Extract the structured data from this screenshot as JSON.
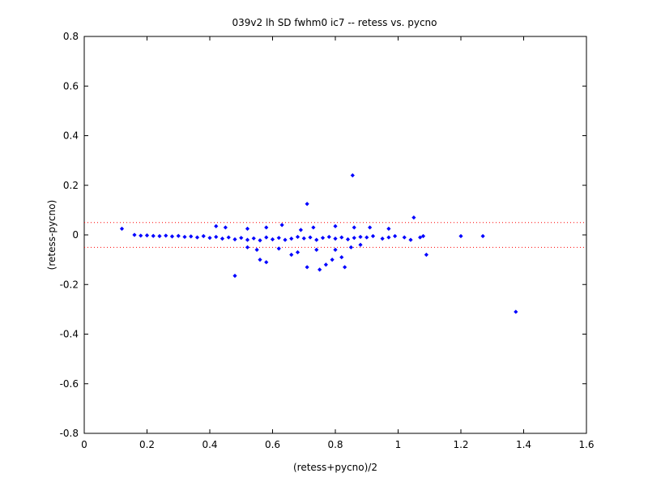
{
  "chart_data": {
    "type": "scatter",
    "title": "039v2 lh SD fwhm0 ic7 -- retess vs. pycno",
    "xlabel": "(retess+pycno)/2",
    "ylabel": "(retess-pycno)",
    "xlim": [
      0,
      1.6
    ],
    "ylim": [
      -0.8,
      0.8
    ],
    "xticks": [
      0,
      0.2,
      0.4,
      0.6,
      0.8,
      1,
      1.2,
      1.4,
      1.6
    ],
    "xtick_labels": [
      "0",
      "0.2",
      "0.4",
      "0.6",
      "0.8",
      "1",
      "1.2",
      "1.4",
      "1.6"
    ],
    "yticks": [
      -0.8,
      -0.6,
      -0.4,
      -0.2,
      0,
      0.2,
      0.4,
      0.6,
      0.8
    ],
    "ytick_labels": [
      "-0.8",
      "-0.6",
      "-0.4",
      "-0.2",
      "0",
      "0.2",
      "0.4",
      "0.6",
      "0.8"
    ],
    "grid": false,
    "reference_lines": [
      0.05,
      -0.05
    ],
    "colors": {
      "points": "#0000ff",
      "reference": "#ff0000",
      "axes": "#000000"
    },
    "points": [
      [
        0.12,
        0.025
      ],
      [
        0.16,
        0.0
      ],
      [
        0.18,
        -0.003
      ],
      [
        0.2,
        -0.002
      ],
      [
        0.22,
        -0.004
      ],
      [
        0.24,
        -0.005
      ],
      [
        0.26,
        -0.003
      ],
      [
        0.28,
        -0.006
      ],
      [
        0.3,
        -0.004
      ],
      [
        0.32,
        -0.008
      ],
      [
        0.34,
        -0.006
      ],
      [
        0.36,
        -0.01
      ],
      [
        0.38,
        -0.005
      ],
      [
        0.4,
        -0.012
      ],
      [
        0.42,
        -0.008
      ],
      [
        0.44,
        -0.015
      ],
      [
        0.46,
        -0.01
      ],
      [
        0.48,
        -0.018
      ],
      [
        0.5,
        -0.012
      ],
      [
        0.52,
        -0.02
      ],
      [
        0.54,
        -0.014
      ],
      [
        0.56,
        -0.022
      ],
      [
        0.58,
        -0.01
      ],
      [
        0.6,
        -0.018
      ],
      [
        0.62,
        -0.012
      ],
      [
        0.64,
        -0.02
      ],
      [
        0.66,
        -0.015
      ],
      [
        0.68,
        -0.008
      ],
      [
        0.7,
        -0.014
      ],
      [
        0.72,
        -0.01
      ],
      [
        0.74,
        -0.02
      ],
      [
        0.76,
        -0.012
      ],
      [
        0.78,
        -0.008
      ],
      [
        0.8,
        -0.015
      ],
      [
        0.82,
        -0.01
      ],
      [
        0.84,
        -0.018
      ],
      [
        0.86,
        -0.012
      ],
      [
        0.88,
        -0.008
      ],
      [
        0.9,
        -0.01
      ],
      [
        0.92,
        -0.005
      ],
      [
        0.42,
        0.035
      ],
      [
        0.45,
        0.03
      ],
      [
        0.52,
        0.025
      ],
      [
        0.58,
        0.03
      ],
      [
        0.63,
        0.04
      ],
      [
        0.69,
        0.02
      ],
      [
        0.73,
        0.03
      ],
      [
        0.8,
        0.035
      ],
      [
        0.86,
        0.03
      ],
      [
        0.91,
        0.03
      ],
      [
        0.97,
        0.025
      ],
      [
        0.71,
        0.125
      ],
      [
        0.855,
        0.24
      ],
      [
        0.48,
        -0.165
      ],
      [
        0.56,
        -0.1
      ],
      [
        0.58,
        -0.11
      ],
      [
        0.66,
        -0.08
      ],
      [
        0.71,
        -0.13
      ],
      [
        0.75,
        -0.14
      ],
      [
        0.77,
        -0.12
      ],
      [
        0.79,
        -0.1
      ],
      [
        0.82,
        -0.09
      ],
      [
        0.83,
        -0.13
      ],
      [
        0.52,
        -0.05
      ],
      [
        0.55,
        -0.06
      ],
      [
        0.62,
        -0.055
      ],
      [
        0.68,
        -0.07
      ],
      [
        0.74,
        -0.06
      ],
      [
        0.8,
        -0.06
      ],
      [
        0.85,
        -0.05
      ],
      [
        0.88,
        -0.04
      ],
      [
        0.95,
        -0.015
      ],
      [
        0.97,
        -0.01
      ],
      [
        0.99,
        -0.005
      ],
      [
        1.02,
        -0.01
      ],
      [
        1.04,
        -0.02
      ],
      [
        1.05,
        0.07
      ],
      [
        1.07,
        -0.01
      ],
      [
        1.08,
        -0.005
      ],
      [
        1.09,
        -0.08
      ],
      [
        1.2,
        -0.005
      ],
      [
        1.27,
        -0.005
      ],
      [
        1.375,
        -0.31
      ]
    ]
  }
}
